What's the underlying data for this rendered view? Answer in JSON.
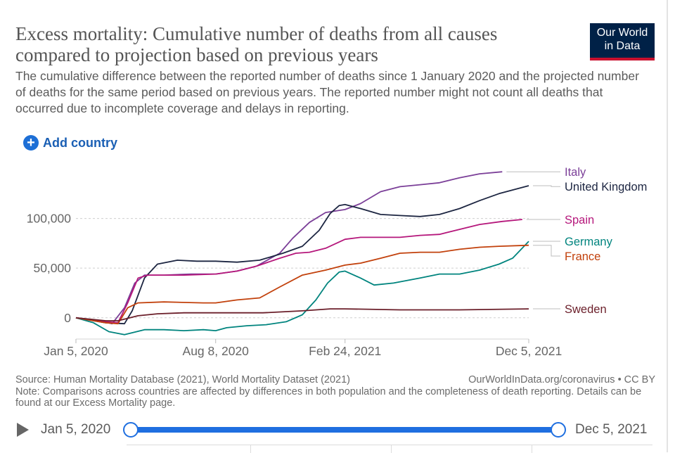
{
  "header": {
    "title": "Excess mortality: Cumulative number of deaths from all causes compared to projection based on previous years",
    "subtitle": "The cumulative difference between the reported number of deaths since 1 January 2020 and the projected number of deaths for the same period based on previous years. The reported number might not count all deaths that occurred due to incomplete coverage and delays in reporting.",
    "logo_line1": "Our World",
    "logo_line2": "in Data",
    "logo_colors": {
      "background": "#002147",
      "accent": "#c8102e"
    }
  },
  "controls": {
    "add_country_label": "Add country",
    "add_icon": "plus-circle-icon"
  },
  "footer": {
    "source": "Source: Human Mortality Database (2021), World Mortality Dataset (2021)",
    "attribution": "OurWorldInData.org/coronavirus • CC BY",
    "note": "Note: Comparisons across countries are affected by differences in both population and the completeness of death reporting. Details can be found at our Excess Mortality page."
  },
  "timeline": {
    "start_label": "Jan 5, 2020",
    "end_label": "Dec 5, 2021",
    "play_icon": "play-icon",
    "start_position": 0,
    "end_position": 1
  },
  "chart_data": {
    "type": "line",
    "xlim": [
      "2020-01-05",
      "2021-12-05"
    ],
    "ylim": [
      -20000,
      150000
    ],
    "y_ticks": [
      0,
      50000,
      100000
    ],
    "y_tick_labels": [
      "0",
      "50,000",
      "100,000"
    ],
    "x_ticks": [
      "2020-01-05",
      "2020-08-08",
      "2021-02-24",
      "2021-12-05"
    ],
    "x_tick_labels": [
      "Jan 5, 2020",
      "Aug 8, 2020",
      "Feb 24, 2021",
      "Dec 5, 2021"
    ],
    "grid": "horizontal dashed",
    "legend": "right, labels at line ends",
    "series": [
      {
        "name": "Italy",
        "color": "#7b3f98",
        "points": [
          [
            "2020-01-05",
            0
          ],
          [
            "2020-02-10",
            -3000
          ],
          [
            "2020-03-01",
            -6000
          ],
          [
            "2020-03-20",
            10000
          ],
          [
            "2020-04-05",
            35000
          ],
          [
            "2020-04-20",
            43000
          ],
          [
            "2020-05-20",
            43000
          ],
          [
            "2020-07-01",
            44000
          ],
          [
            "2020-08-08",
            44000
          ],
          [
            "2020-09-10",
            47000
          ],
          [
            "2020-10-10",
            52000
          ],
          [
            "2020-11-15",
            65000
          ],
          [
            "2020-12-05",
            80000
          ],
          [
            "2020-12-31",
            96000
          ],
          [
            "2021-01-25",
            106000
          ],
          [
            "2021-02-24",
            109000
          ],
          [
            "2021-03-20",
            115000
          ],
          [
            "2021-04-20",
            127000
          ],
          [
            "2021-05-20",
            132000
          ],
          [
            "2021-06-20",
            134000
          ],
          [
            "2021-07-20",
            136000
          ],
          [
            "2021-08-20",
            141000
          ],
          [
            "2021-09-20",
            145000
          ],
          [
            "2021-10-25",
            147000
          ]
        ]
      },
      {
        "name": "United Kingdom",
        "color": "#1c2541",
        "points": [
          [
            "2020-01-05",
            0
          ],
          [
            "2020-02-20",
            -5000
          ],
          [
            "2020-03-20",
            -6000
          ],
          [
            "2020-04-01",
            7000
          ],
          [
            "2020-04-20",
            40000
          ],
          [
            "2020-05-10",
            54000
          ],
          [
            "2020-06-10",
            58000
          ],
          [
            "2020-07-10",
            57000
          ],
          [
            "2020-08-08",
            57000
          ],
          [
            "2020-09-10",
            56000
          ],
          [
            "2020-10-15",
            58000
          ],
          [
            "2020-11-20",
            65000
          ],
          [
            "2020-12-20",
            72000
          ],
          [
            "2021-01-15",
            88000
          ],
          [
            "2021-02-01",
            105000
          ],
          [
            "2021-02-15",
            113000
          ],
          [
            "2021-02-24",
            114000
          ],
          [
            "2021-03-20",
            110000
          ],
          [
            "2021-04-20",
            104000
          ],
          [
            "2021-05-20",
            103000
          ],
          [
            "2021-06-20",
            102000
          ],
          [
            "2021-07-20",
            104000
          ],
          [
            "2021-08-20",
            110000
          ],
          [
            "2021-09-20",
            118000
          ],
          [
            "2021-10-20",
            125000
          ],
          [
            "2021-12-05",
            133000
          ]
        ]
      },
      {
        "name": "Spain",
        "color": "#b5177b",
        "points": [
          [
            "2020-01-05",
            0
          ],
          [
            "2020-02-20",
            -4000
          ],
          [
            "2020-03-10",
            -5000
          ],
          [
            "2020-03-25",
            15000
          ],
          [
            "2020-04-10",
            40000
          ],
          [
            "2020-04-25",
            43000
          ],
          [
            "2020-06-20",
            43000
          ],
          [
            "2020-08-08",
            44000
          ],
          [
            "2020-09-10",
            47000
          ],
          [
            "2020-10-10",
            52000
          ],
          [
            "2020-11-15",
            60000
          ],
          [
            "2020-12-10",
            65000
          ],
          [
            "2020-12-31",
            66000
          ],
          [
            "2021-01-25",
            70000
          ],
          [
            "2021-02-24",
            79000
          ],
          [
            "2021-03-20",
            81000
          ],
          [
            "2021-05-20",
            81000
          ],
          [
            "2021-06-20",
            83000
          ],
          [
            "2021-07-20",
            84000
          ],
          [
            "2021-08-20",
            89000
          ],
          [
            "2021-09-20",
            94000
          ],
          [
            "2021-10-25",
            97000
          ],
          [
            "2021-11-25",
            99000
          ]
        ]
      },
      {
        "name": "Germany",
        "color": "#00847e",
        "points": [
          [
            "2020-01-05",
            0
          ],
          [
            "2020-02-01",
            -5000
          ],
          [
            "2020-02-25",
            -14000
          ],
          [
            "2020-03-20",
            -17000
          ],
          [
            "2020-04-20",
            -12000
          ],
          [
            "2020-05-20",
            -12000
          ],
          [
            "2020-06-20",
            -13000
          ],
          [
            "2020-07-20",
            -12000
          ],
          [
            "2020-08-08",
            -13000
          ],
          [
            "2020-08-25",
            -10000
          ],
          [
            "2020-09-25",
            -8000
          ],
          [
            "2020-10-25",
            -7000
          ],
          [
            "2020-11-25",
            -4000
          ],
          [
            "2020-12-20",
            3000
          ],
          [
            "2021-01-10",
            18000
          ],
          [
            "2021-01-28",
            35000
          ],
          [
            "2021-02-15",
            46000
          ],
          [
            "2021-02-24",
            47000
          ],
          [
            "2021-03-20",
            40000
          ],
          [
            "2021-04-10",
            33000
          ],
          [
            "2021-05-10",
            35000
          ],
          [
            "2021-06-20",
            40000
          ],
          [
            "2021-07-20",
            44000
          ],
          [
            "2021-08-20",
            44000
          ],
          [
            "2021-09-20",
            48000
          ],
          [
            "2021-10-20",
            54000
          ],
          [
            "2021-11-10",
            60000
          ],
          [
            "2021-12-05",
            77000
          ]
        ]
      },
      {
        "name": "France",
        "color": "#c2410c",
        "points": [
          [
            "2020-01-05",
            0
          ],
          [
            "2020-02-20",
            -5000
          ],
          [
            "2020-03-10",
            -6000
          ],
          [
            "2020-03-25",
            10000
          ],
          [
            "2020-04-10",
            15000
          ],
          [
            "2020-05-20",
            16000
          ],
          [
            "2020-07-20",
            15000
          ],
          [
            "2020-08-08",
            15000
          ],
          [
            "2020-09-10",
            18000
          ],
          [
            "2020-10-15",
            20000
          ],
          [
            "2020-11-15",
            31000
          ],
          [
            "2020-12-20",
            43000
          ],
          [
            "2021-01-25",
            48000
          ],
          [
            "2021-02-24",
            53000
          ],
          [
            "2021-03-20",
            55000
          ],
          [
            "2021-04-20",
            60000
          ],
          [
            "2021-05-20",
            65000
          ],
          [
            "2021-06-20",
            66000
          ],
          [
            "2021-07-20",
            66000
          ],
          [
            "2021-08-20",
            69000
          ],
          [
            "2021-09-20",
            71000
          ],
          [
            "2021-10-20",
            72000
          ],
          [
            "2021-12-05",
            73000
          ]
        ]
      },
      {
        "name": "Sweden",
        "color": "#6b1f2a",
        "points": [
          [
            "2020-01-05",
            0
          ],
          [
            "2020-02-20",
            -3000
          ],
          [
            "2020-03-10",
            -3000
          ],
          [
            "2020-04-10",
            2000
          ],
          [
            "2020-05-10",
            4000
          ],
          [
            "2020-06-20",
            5000
          ],
          [
            "2020-08-08",
            5000
          ],
          [
            "2020-10-20",
            5000
          ],
          [
            "2020-12-20",
            7000
          ],
          [
            "2021-02-01",
            9000
          ],
          [
            "2021-02-24",
            9000
          ],
          [
            "2021-05-20",
            8000
          ],
          [
            "2021-08-20",
            8000
          ],
          [
            "2021-12-05",
            9000
          ]
        ]
      }
    ]
  }
}
